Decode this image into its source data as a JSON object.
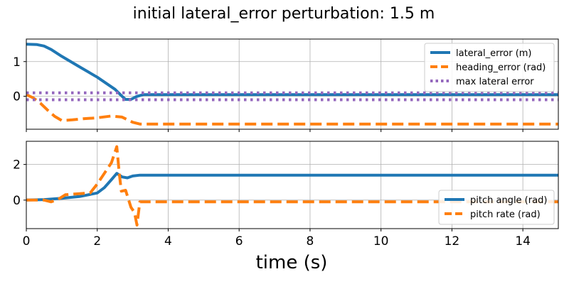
{
  "figure": {
    "title": "initial lateral_error perturbation: 1.5 m",
    "xlabel": "time (s)"
  },
  "chart_data": [
    {
      "type": "line",
      "xlim": [
        0,
        15
      ],
      "ylim": [
        -0.95,
        1.65
      ],
      "x_ticks": [
        0,
        2,
        4,
        6,
        8,
        10,
        12,
        14
      ],
      "y_ticks": [
        0,
        1
      ],
      "grid": true,
      "legend_position": "top-right",
      "series": [
        {
          "name": "lateral_error (m)",
          "color": "#1f77b4",
          "style": "solid",
          "x": [
            0,
            0.3,
            0.5,
            0.7,
            1.0,
            1.5,
            2.0,
            2.5,
            2.7,
            2.8,
            2.95,
            3.1,
            3.3,
            3.6,
            4,
            6,
            8,
            10,
            12,
            15
          ],
          "y": [
            1.5,
            1.49,
            1.45,
            1.35,
            1.15,
            0.85,
            0.55,
            0.2,
            0.0,
            -0.09,
            -0.09,
            -0.01,
            0.05,
            0.05,
            0.05,
            0.05,
            0.05,
            0.05,
            0.05,
            0.05
          ]
        },
        {
          "name": "heading_error (rad)",
          "color": "#ff7f0e",
          "style": "dashed",
          "x": [
            0,
            0.2,
            0.4,
            0.6,
            0.8,
            1.0,
            1.3,
            1.6,
            2.0,
            2.4,
            2.7,
            3.0,
            3.2,
            4,
            6,
            8,
            10,
            12,
            15
          ],
          "y": [
            0.05,
            -0.05,
            -0.2,
            -0.4,
            -0.58,
            -0.7,
            -0.68,
            -0.65,
            -0.62,
            -0.57,
            -0.6,
            -0.75,
            -0.8,
            -0.8,
            -0.8,
            -0.8,
            -0.8,
            -0.8,
            -0.8
          ]
        },
        {
          "name": "max lateral error",
          "color": "#9467bd",
          "style": "dotted",
          "x": [
            0,
            15
          ],
          "y": [
            0.1,
            0.1
          ]
        },
        {
          "name": "",
          "color": "#9467bd",
          "style": "dotted",
          "x": [
            0,
            15
          ],
          "y": [
            -0.1,
            -0.1
          ]
        }
      ]
    },
    {
      "type": "line",
      "xlim": [
        0,
        15
      ],
      "ylim": [
        -1.6,
        3.3
      ],
      "x_ticks": [
        0,
        2,
        4,
        6,
        8,
        10,
        12,
        14
      ],
      "y_ticks": [
        0,
        2
      ],
      "x_tick_labels": [
        "0",
        "2",
        "4",
        "6",
        "8",
        "10",
        "12",
        "14"
      ],
      "grid": true,
      "legend_position": "lower-right",
      "series": [
        {
          "name": "pitch angle (rad)",
          "color": "#1f77b4",
          "style": "solid",
          "x": [
            0,
            0.5,
            1.0,
            1.5,
            2.0,
            2.2,
            2.4,
            2.55,
            2.7,
            2.85,
            3.0,
            3.2,
            4,
            6,
            8,
            10,
            12,
            15
          ],
          "y": [
            0.0,
            0.03,
            0.1,
            0.2,
            0.4,
            0.7,
            1.15,
            1.5,
            1.3,
            1.25,
            1.35,
            1.4,
            1.4,
            1.4,
            1.4,
            1.4,
            1.4,
            1.4
          ]
        },
        {
          "name": "pitch rate (rad)",
          "color": "#ff7f0e",
          "style": "dashed",
          "x": [
            0,
            0.5,
            0.7,
            0.9,
            1.1,
            1.4,
            1.8,
            2.0,
            2.2,
            2.4,
            2.55,
            2.62,
            2.68,
            2.8,
            2.95,
            3.05,
            3.12,
            3.2,
            3.4,
            4,
            6,
            8,
            10,
            12,
            15
          ],
          "y": [
            0.0,
            0.0,
            -0.1,
            0.05,
            0.3,
            0.35,
            0.4,
            0.9,
            1.5,
            2.1,
            3.0,
            1.5,
            0.5,
            0.55,
            -0.4,
            -0.7,
            -1.4,
            -0.1,
            -0.1,
            -0.1,
            -0.1,
            -0.1,
            -0.1,
            -0.1,
            -0.1
          ]
        }
      ]
    }
  ]
}
